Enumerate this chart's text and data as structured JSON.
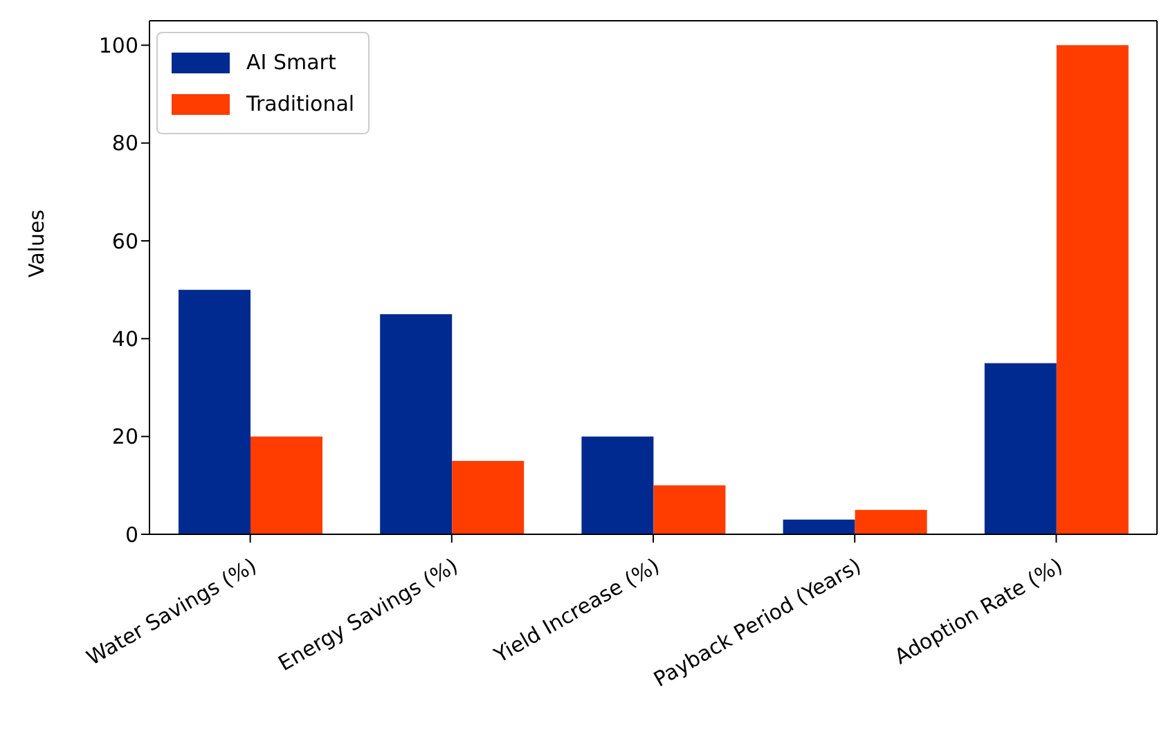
{
  "chart_data": {
    "type": "bar",
    "ylabel": "Values",
    "categories": [
      "Water Savings (%)",
      "Energy Savings (%)",
      "Yield Increase (%)",
      "Payback Period (Years)",
      "Adoption Rate (%)"
    ],
    "series": [
      {
        "name": "AI Smart",
        "color": "#002a8f",
        "values": [
          50,
          45,
          20,
          3,
          35
        ]
      },
      {
        "name": "Traditional",
        "color": "#ff3d00",
        "values": [
          20,
          15,
          10,
          5,
          100
        ]
      }
    ],
    "ylim": [
      0,
      105
    ],
    "yticks": [
      0,
      20,
      40,
      60,
      80,
      100
    ],
    "grid": false,
    "legend": "top left"
  }
}
